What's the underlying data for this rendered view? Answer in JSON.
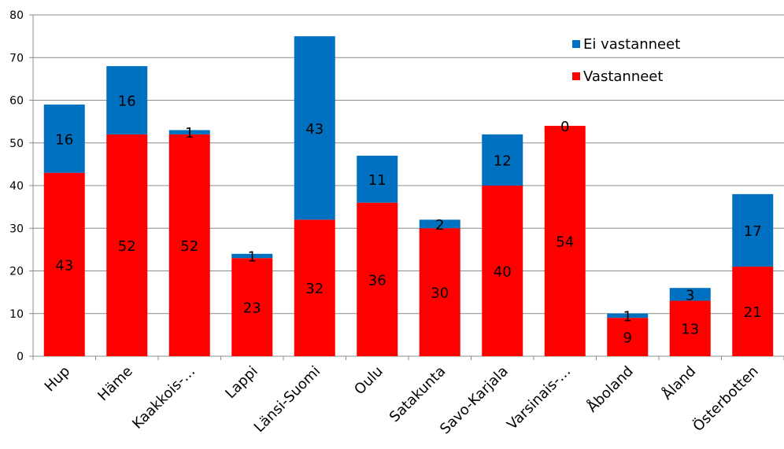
{
  "chart_data": {
    "type": "bar",
    "stacked": true,
    "categories": [
      "Hup",
      "Häme",
      "Kaakkois-…",
      "Lappi",
      "Länsi-Suomi",
      "Oulu",
      "Satakunta",
      "Savo-Karjala",
      "Varsinais-…",
      "Åboland",
      "Åland",
      "Österbotten"
    ],
    "series": [
      {
        "name": "Vastanneet",
        "color": "#ff0000",
        "values": [
          43,
          52,
          52,
          23,
          32,
          36,
          30,
          40,
          54,
          9,
          13,
          21
        ]
      },
      {
        "name": "Ei vastanneet",
        "color": "#0070c0",
        "values": [
          16,
          16,
          1,
          1,
          43,
          11,
          2,
          12,
          0,
          1,
          3,
          17
        ]
      }
    ],
    "ylim": [
      0,
      80
    ],
    "yticks": [
      0,
      10,
      20,
      30,
      40,
      50,
      60,
      70,
      80
    ],
    "grid": true,
    "legend": {
      "position": "top-right",
      "order": [
        "Ei vastanneet",
        "Vastanneet"
      ]
    },
    "title": "",
    "xlabel": "",
    "ylabel": ""
  }
}
